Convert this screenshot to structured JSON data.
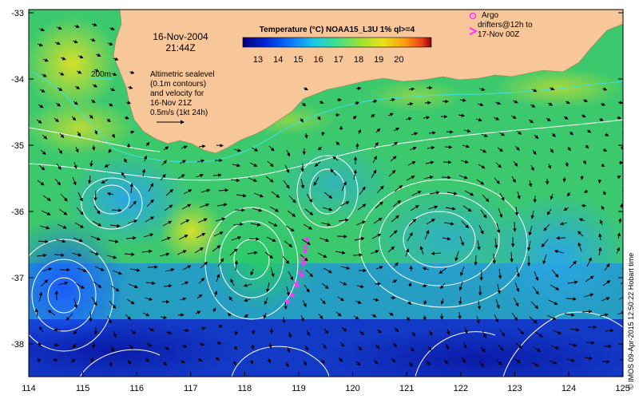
{
  "map": {
    "date": "16-Nov-2004",
    "time": "21:44Z",
    "colorbar": {
      "title": "Temperature (°C) NOAA15_L3U 1% ql>=4",
      "ticks": [
        "13",
        "14",
        "15",
        "16",
        "17",
        "18",
        "19",
        "20"
      ],
      "colors": [
        "#05007a",
        "#0025d6",
        "#0a7bff",
        "#19c8e6",
        "#3ee08a",
        "#9be234",
        "#e8e41a",
        "#ff9a10",
        "#e8401a",
        "#8a0010"
      ]
    },
    "depth_label": "200m",
    "altimetry_note": [
      "Altimetric sealevel",
      "(0.1m contours)",
      "and velocity for",
      "16-Nov 21Z",
      "0.5m/s (1kt 24h)"
    ],
    "argo_note": [
      "Argo",
      "drifters@12h to",
      "17-Nov 00Z"
    ],
    "y_ticks": [
      "-33",
      "-34",
      "-35",
      "-36",
      "-37",
      "-38"
    ],
    "x_ticks": [
      "114",
      "115",
      "116",
      "117",
      "118",
      "119",
      "120",
      "121",
      "122",
      "123",
      "124",
      "125"
    ],
    "credit": "© IMOS 09-Apr-2015 12:50:22 Hobart time",
    "colors": {
      "land": "#f7c79a",
      "contour": "#ffffff",
      "argo": "#ff33ff",
      "arrow": "#000000"
    }
  }
}
